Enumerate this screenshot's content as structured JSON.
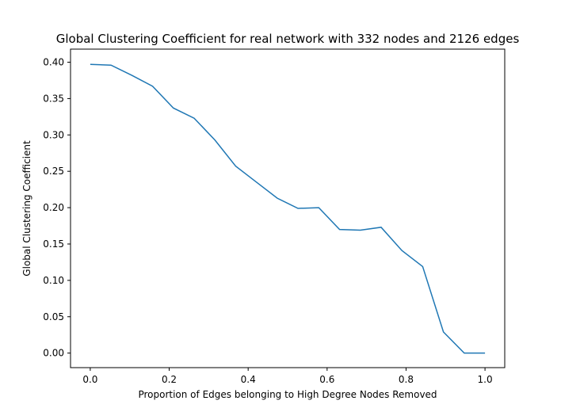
{
  "chart_data": {
    "type": "line",
    "title": "Global Clustering Coefficient for real network with 332 nodes and 2126 edges",
    "xlabel": "Proportion of Edges belonging to High Degree Nodes Removed",
    "ylabel": "Global Clustering Coefficient",
    "xlim": [
      -0.05,
      1.05
    ],
    "ylim": [
      -0.02,
      0.418
    ],
    "grid": false,
    "line_color": "#1f77b4",
    "x_ticks": [
      {
        "value": 0.0,
        "label": "0.0"
      },
      {
        "value": 0.2,
        "label": "0.2"
      },
      {
        "value": 0.4,
        "label": "0.4"
      },
      {
        "value": 0.6,
        "label": "0.6"
      },
      {
        "value": 0.8,
        "label": "0.8"
      },
      {
        "value": 1.0,
        "label": "1.0"
      }
    ],
    "y_ticks": [
      {
        "value": 0.0,
        "label": "0.00"
      },
      {
        "value": 0.05,
        "label": "0.05"
      },
      {
        "value": 0.1,
        "label": "0.10"
      },
      {
        "value": 0.15,
        "label": "0.15"
      },
      {
        "value": 0.2,
        "label": "0.20"
      },
      {
        "value": 0.25,
        "label": "0.25"
      },
      {
        "value": 0.3,
        "label": "0.30"
      },
      {
        "value": 0.35,
        "label": "0.35"
      },
      {
        "value": 0.4,
        "label": "0.40"
      }
    ],
    "series": [
      {
        "x": [
          0.0,
          0.0526,
          0.1053,
          0.1579,
          0.2105,
          0.2632,
          0.3158,
          0.3684,
          0.4211,
          0.4737,
          0.5263,
          0.5789,
          0.6316,
          0.6842,
          0.7368,
          0.7895,
          0.8421,
          0.8947,
          0.9474,
          1.0
        ],
        "values": [
          0.397,
          0.396,
          0.382,
          0.367,
          0.337,
          0.323,
          0.293,
          0.257,
          0.235,
          0.213,
          0.199,
          0.2,
          0.17,
          0.169,
          0.173,
          0.141,
          0.119,
          0.029,
          0.0,
          0.0
        ]
      }
    ]
  }
}
